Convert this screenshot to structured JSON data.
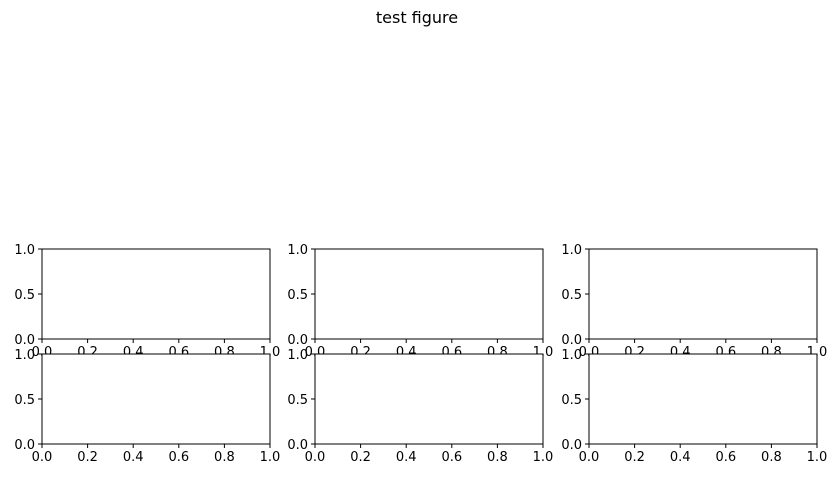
{
  "figure": {
    "title": "test figure"
  },
  "chart_data": [
    {
      "type": "line",
      "position": "row 1, col 1",
      "series": [],
      "xlim": [
        0,
        1
      ],
      "ylim": [
        0,
        1
      ],
      "xticks": [
        "0.0",
        "0.2",
        "0.4",
        "0.6",
        "0.8",
        "1.0"
      ],
      "yticks": [
        "0.0",
        "0.5",
        "1.0"
      ],
      "xlabel": "",
      "ylabel": "",
      "grid": false
    },
    {
      "type": "line",
      "position": "row 1, col 2",
      "series": [],
      "xlim": [
        0,
        1
      ],
      "ylim": [
        0,
        1
      ],
      "xticks": [
        "0.0",
        "0.2",
        "0.4",
        "0.6",
        "0.8",
        "1.0"
      ],
      "yticks": [
        "0.0",
        "0.5",
        "1.0"
      ],
      "xlabel": "",
      "ylabel": "",
      "grid": false
    },
    {
      "type": "line",
      "position": "row 1, col 3",
      "series": [],
      "xlim": [
        0,
        1
      ],
      "ylim": [
        0,
        1
      ],
      "xticks": [
        "0.0",
        "0.2",
        "0.4",
        "0.6",
        "0.8",
        "1.0"
      ],
      "yticks": [
        "0.0",
        "0.5",
        "1.0"
      ],
      "xlabel": "",
      "ylabel": "",
      "grid": false
    },
    {
      "type": "line",
      "position": "row 2, col 1",
      "series": [],
      "xlim": [
        0,
        1
      ],
      "ylim": [
        0,
        1
      ],
      "xticks": [
        "0.0",
        "0.2",
        "0.4",
        "0.6",
        "0.8",
        "1.0"
      ],
      "yticks": [
        "0.0",
        "0.5",
        "1.0"
      ],
      "xlabel": "",
      "ylabel": "",
      "grid": false
    },
    {
      "type": "line",
      "position": "row 2, col 2",
      "series": [],
      "xlim": [
        0,
        1
      ],
      "ylim": [
        0,
        1
      ],
      "xticks": [
        "0.0",
        "0.2",
        "0.4",
        "0.6",
        "0.8",
        "1.0"
      ],
      "yticks": [
        "0.0",
        "0.5",
        "1.0"
      ],
      "xlabel": "",
      "ylabel": "",
      "grid": false
    },
    {
      "type": "line",
      "position": "row 2, col 3",
      "series": [],
      "xlim": [
        0,
        1
      ],
      "ylim": [
        0,
        1
      ],
      "xticks": [
        "0.0",
        "0.2",
        "0.4",
        "0.6",
        "0.8",
        "1.0"
      ],
      "yticks": [
        "0.0",
        "0.5",
        "1.0"
      ],
      "xlabel": "",
      "ylabel": "",
      "grid": false
    }
  ]
}
